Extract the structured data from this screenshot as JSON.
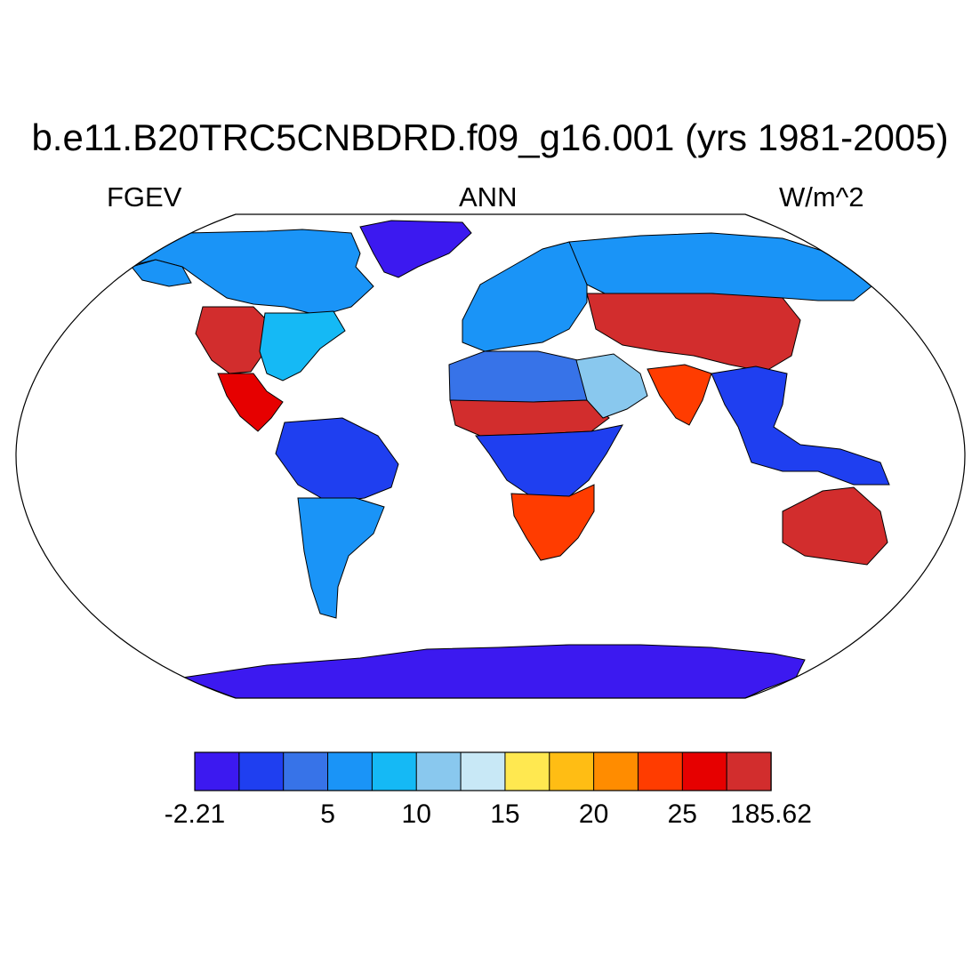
{
  "title": "b.e11.B20TRC5CNBDRD.f09_g16.001 (yrs 1981-2005)",
  "left_label": "FGEV",
  "center_label": "ANN",
  "right_label": "W/m^2",
  "colorbar": {
    "colors": [
      "#3c19f0",
      "#1f3ff0",
      "#3773e8",
      "#1a94f7",
      "#15b9f5",
      "#89c8ee",
      "#c8e8f6",
      "#ffe850",
      "#ffbd14",
      "#ff8c00",
      "#ff3c00",
      "#e60000",
      "#d22d2d"
    ],
    "tick_labels": [
      "-2.21",
      "5",
      "10",
      "15",
      "20",
      "25",
      "185.62"
    ],
    "tick_boundaries": [
      0,
      3,
      5,
      7,
      9,
      11,
      13
    ]
  },
  "map": {
    "projection": "Robinson",
    "ocean_color": "#ffffff",
    "regions": [
      {
        "name": "Greenland",
        "level": 0
      },
      {
        "name": "Antarctica",
        "level": 0
      },
      {
        "name": "Northern Canada",
        "level": 3
      },
      {
        "name": "Alaska",
        "level": 3
      },
      {
        "name": "Western United States",
        "level": 12
      },
      {
        "name": "Eastern United States",
        "level": 4
      },
      {
        "name": "Mexico",
        "level": 11
      },
      {
        "name": "Amazon",
        "level": 1
      },
      {
        "name": "Southern South America",
        "level": 3
      },
      {
        "name": "Sahara",
        "level": 2
      },
      {
        "name": "Sahel",
        "level": 12
      },
      {
        "name": "Central Africa",
        "level": 1
      },
      {
        "name": "Southern Africa",
        "level": 10
      },
      {
        "name": "Europe",
        "level": 3
      },
      {
        "name": "Siberia",
        "level": 3
      },
      {
        "name": "Central Asia",
        "level": 12
      },
      {
        "name": "Arabia",
        "level": 5
      },
      {
        "name": "India",
        "level": 10
      },
      {
        "name": "Southeast Asia",
        "level": 1
      },
      {
        "name": "Australia",
        "level": 12
      }
    ]
  }
}
